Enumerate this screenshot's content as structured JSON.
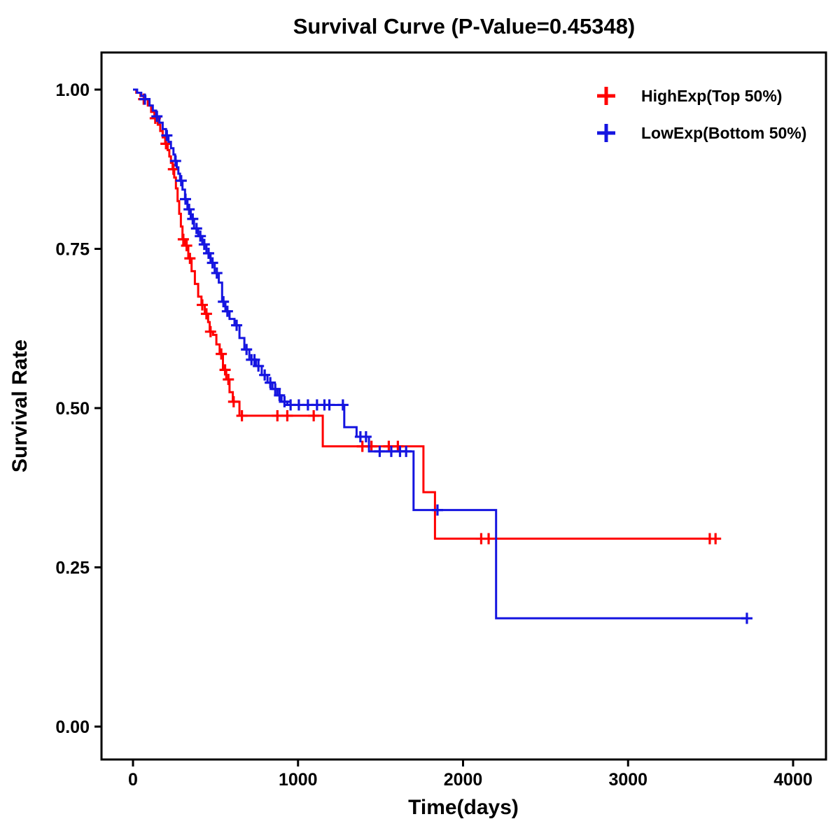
{
  "title": "Survival Curve (P-Value=0.45348)",
  "chart_data": {
    "type": "line",
    "subtype": "kaplan-meier-step",
    "title": "Survival Curve (P-Value=0.45348)",
    "p_value": "0.45348",
    "xlabel": "Time(days)",
    "ylabel": "Survival Rate",
    "xlim": [
      0,
      4000
    ],
    "ylim": [
      0,
      1
    ],
    "xticks": [
      0,
      1000,
      2000,
      3000,
      4000
    ],
    "yticks": [
      0,
      0.25,
      0.5,
      0.75,
      1
    ],
    "xtick_labels": [
      "0",
      "1000",
      "2000",
      "3000",
      "4000"
    ],
    "ytick_labels": [
      "0.00",
      "0.25",
      "0.50",
      "0.75",
      "1.00"
    ],
    "grid": false,
    "legend_position": "top-right",
    "series": [
      {
        "name": "HighExp(Top 50%)",
        "color": "#FF0000",
        "steps": [
          [
            0,
            1.0
          ],
          [
            20,
            0.995
          ],
          [
            45,
            0.99
          ],
          [
            70,
            0.985
          ],
          [
            90,
            0.975
          ],
          [
            110,
            0.965
          ],
          [
            130,
            0.955
          ],
          [
            150,
            0.945
          ],
          [
            165,
            0.935
          ],
          [
            180,
            0.925
          ],
          [
            195,
            0.915
          ],
          [
            210,
            0.905
          ],
          [
            220,
            0.895
          ],
          [
            230,
            0.885
          ],
          [
            240,
            0.875
          ],
          [
            250,
            0.862
          ],
          [
            260,
            0.845
          ],
          [
            270,
            0.825
          ],
          [
            280,
            0.805
          ],
          [
            290,
            0.785
          ],
          [
            300,
            0.765
          ],
          [
            315,
            0.755
          ],
          [
            335,
            0.735
          ],
          [
            355,
            0.715
          ],
          [
            375,
            0.695
          ],
          [
            395,
            0.675
          ],
          [
            415,
            0.662
          ],
          [
            435,
            0.648
          ],
          [
            455,
            0.635
          ],
          [
            465,
            0.62
          ],
          [
            485,
            0.615
          ],
          [
            505,
            0.6
          ],
          [
            525,
            0.585
          ],
          [
            545,
            0.56
          ],
          [
            565,
            0.545
          ],
          [
            585,
            0.525
          ],
          [
            605,
            0.51
          ],
          [
            645,
            0.488
          ],
          [
            1150,
            0.44
          ],
          [
            1760,
            0.368
          ],
          [
            1830,
            0.295
          ],
          [
            3530,
            0.295
          ]
        ],
        "censors": [
          [
            65,
            0.985
          ],
          [
            135,
            0.955
          ],
          [
            200,
            0.915
          ],
          [
            245,
            0.875
          ],
          [
            305,
            0.765
          ],
          [
            325,
            0.755
          ],
          [
            345,
            0.735
          ],
          [
            420,
            0.662
          ],
          [
            445,
            0.648
          ],
          [
            470,
            0.62
          ],
          [
            535,
            0.585
          ],
          [
            558,
            0.56
          ],
          [
            578,
            0.545
          ],
          [
            610,
            0.51
          ],
          [
            660,
            0.488
          ],
          [
            875,
            0.488
          ],
          [
            935,
            0.488
          ],
          [
            1095,
            0.488
          ],
          [
            1390,
            0.44
          ],
          [
            1445,
            0.44
          ],
          [
            1550,
            0.44
          ],
          [
            1605,
            0.44
          ],
          [
            2110,
            0.295
          ],
          [
            2155,
            0.295
          ],
          [
            3495,
            0.295
          ],
          [
            3530,
            0.295
          ]
        ]
      },
      {
        "name": "LowExp(Bottom 50%)",
        "color": "#1515E0",
        "steps": [
          [
            0,
            1.0
          ],
          [
            25,
            0.995
          ],
          [
            50,
            0.99
          ],
          [
            75,
            0.985
          ],
          [
            100,
            0.975
          ],
          [
            120,
            0.967
          ],
          [
            140,
            0.958
          ],
          [
            160,
            0.948
          ],
          [
            180,
            0.938
          ],
          [
            200,
            0.928
          ],
          [
            215,
            0.918
          ],
          [
            230,
            0.908
          ],
          [
            245,
            0.898
          ],
          [
            255,
            0.888
          ],
          [
            265,
            0.878
          ],
          [
            275,
            0.868
          ],
          [
            285,
            0.857
          ],
          [
            300,
            0.843
          ],
          [
            315,
            0.828
          ],
          [
            330,
            0.812
          ],
          [
            350,
            0.797
          ],
          [
            370,
            0.782
          ],
          [
            395,
            0.77
          ],
          [
            420,
            0.757
          ],
          [
            445,
            0.743
          ],
          [
            470,
            0.728
          ],
          [
            495,
            0.712
          ],
          [
            520,
            0.697
          ],
          [
            540,
            0.667
          ],
          [
            560,
            0.652
          ],
          [
            585,
            0.64
          ],
          [
            615,
            0.63
          ],
          [
            645,
            0.61
          ],
          [
            675,
            0.592
          ],
          [
            705,
            0.576
          ],
          [
            745,
            0.566
          ],
          [
            780,
            0.552
          ],
          [
            815,
            0.54
          ],
          [
            845,
            0.53
          ],
          [
            875,
            0.52
          ],
          [
            900,
            0.51
          ],
          [
            935,
            0.505
          ],
          [
            1280,
            0.47
          ],
          [
            1355,
            0.455
          ],
          [
            1430,
            0.432
          ],
          [
            1700,
            0.34
          ],
          [
            2200,
            0.17
          ],
          [
            3720,
            0.17
          ]
        ],
        "censors": [
          [
            72,
            0.985
          ],
          [
            145,
            0.958
          ],
          [
            205,
            0.928
          ],
          [
            258,
            0.888
          ],
          [
            292,
            0.857
          ],
          [
            318,
            0.828
          ],
          [
            340,
            0.812
          ],
          [
            362,
            0.797
          ],
          [
            385,
            0.782
          ],
          [
            408,
            0.77
          ],
          [
            432,
            0.757
          ],
          [
            458,
            0.743
          ],
          [
            482,
            0.728
          ],
          [
            508,
            0.712
          ],
          [
            548,
            0.667
          ],
          [
            572,
            0.652
          ],
          [
            628,
            0.63
          ],
          [
            688,
            0.592
          ],
          [
            718,
            0.576
          ],
          [
            736,
            0.576
          ],
          [
            760,
            0.566
          ],
          [
            798,
            0.552
          ],
          [
            832,
            0.54
          ],
          [
            862,
            0.53
          ],
          [
            888,
            0.52
          ],
          [
            918,
            0.51
          ],
          [
            955,
            0.505
          ],
          [
            1005,
            0.505
          ],
          [
            1060,
            0.505
          ],
          [
            1115,
            0.505
          ],
          [
            1160,
            0.505
          ],
          [
            1190,
            0.505
          ],
          [
            1272,
            0.505
          ],
          [
            1378,
            0.455
          ],
          [
            1412,
            0.455
          ],
          [
            1495,
            0.432
          ],
          [
            1565,
            0.432
          ],
          [
            1618,
            0.432
          ],
          [
            1655,
            0.432
          ],
          [
            1845,
            0.34
          ],
          [
            3720,
            0.17
          ]
        ]
      }
    ]
  }
}
